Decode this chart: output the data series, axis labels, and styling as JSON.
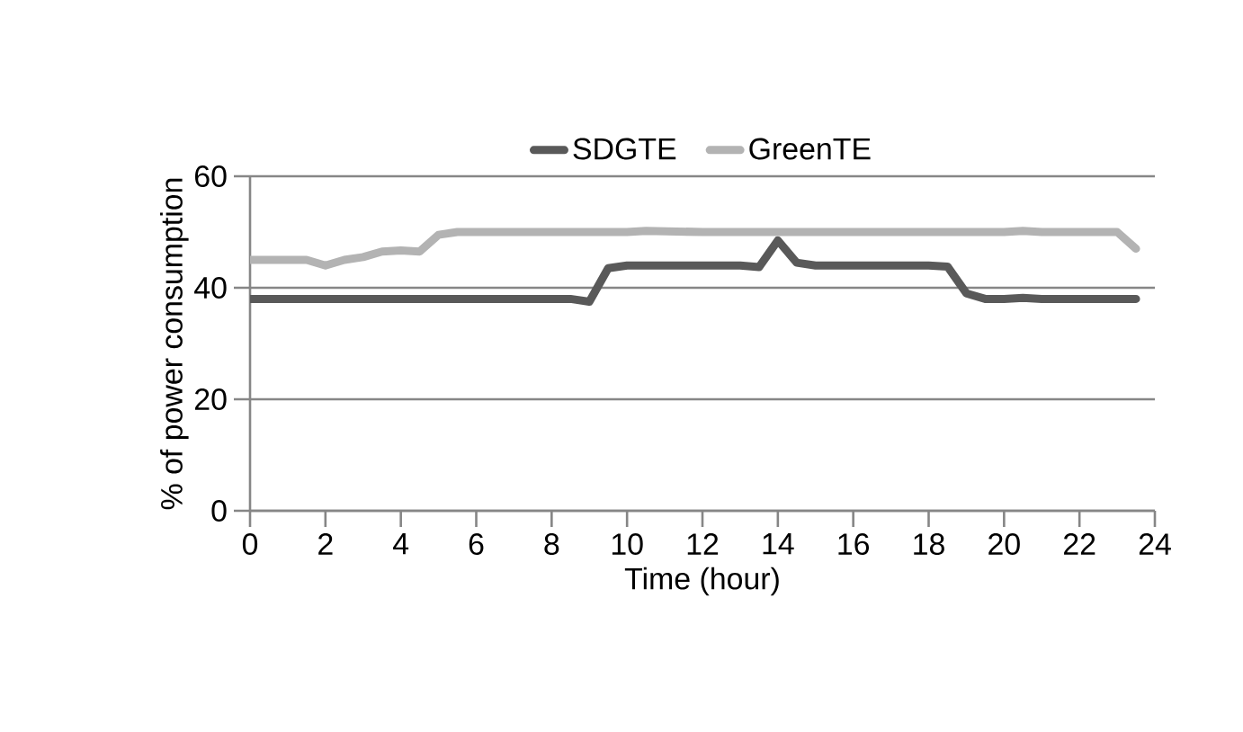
{
  "chart_data": {
    "type": "line",
    "xlabel": "Time (hour)",
    "ylabel": "% of power consumption",
    "xlim": [
      0,
      24
    ],
    "ylim": [
      0,
      60
    ],
    "xticks": [
      0,
      2,
      4,
      6,
      8,
      10,
      12,
      14,
      16,
      18,
      20,
      22,
      24
    ],
    "yticks": [
      0,
      20,
      40,
      60
    ],
    "grid": "y",
    "legend": "top",
    "line_style": "solid",
    "marker": "none",
    "series": [
      {
        "name": "SDGTE",
        "color": "#595959",
        "x": [
          0,
          1,
          2,
          3,
          4,
          5,
          6,
          7,
          8,
          8.5,
          9,
          9.5,
          10,
          11,
          12,
          13,
          13.5,
          14,
          14.5,
          15,
          16,
          17,
          18,
          18.5,
          19,
          19.5,
          20,
          20.5,
          21,
          22,
          23,
          23.5
        ],
        "values": [
          38,
          38,
          38,
          38,
          38,
          38,
          38,
          38,
          38,
          38,
          37.5,
          43.5,
          44,
          44,
          44,
          44,
          43.7,
          48.5,
          44.5,
          44,
          44,
          44,
          44,
          43.8,
          39,
          38,
          38,
          38.2,
          38,
          38,
          38,
          38
        ]
      },
      {
        "name": "GreenTE",
        "color": "#b3b3b3",
        "x": [
          0,
          1,
          1.5,
          2,
          2.5,
          3,
          3.5,
          4,
          4.5,
          5,
          5.5,
          6,
          8,
          10,
          10.5,
          12,
          14,
          16,
          18,
          20,
          20.5,
          21,
          22,
          23,
          23.5
        ],
        "values": [
          45,
          45,
          45,
          44,
          45,
          45.5,
          46.5,
          46.7,
          46.5,
          49.5,
          50,
          50,
          50,
          50,
          50.2,
          50,
          50,
          50,
          50,
          50,
          50.2,
          50,
          50,
          50,
          47
        ]
      }
    ]
  }
}
